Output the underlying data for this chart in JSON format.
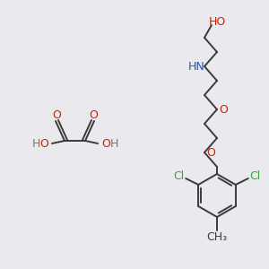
{
  "bg_color": "#eaeaee",
  "bond_color": "#3a3a3a",
  "oxygen_color": "#cc2200",
  "nitrogen_color": "#2255bb",
  "chlorine_color": "#33aa33",
  "hydrogen_color": "#5f8080",
  "figsize": [
    3.0,
    3.0
  ],
  "dpi": 100,
  "xlim": [
    0,
    300
  ],
  "ylim": [
    0,
    300
  ]
}
